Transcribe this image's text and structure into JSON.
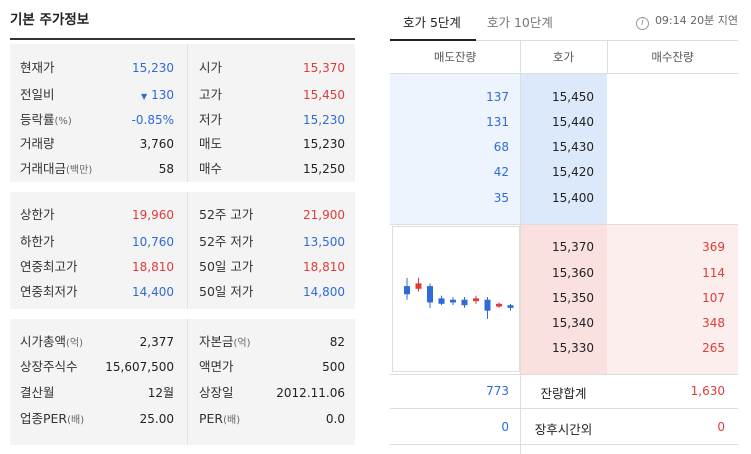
{
  "left": {
    "title": "기본 주가정보",
    "sections": [
      {
        "rows": [
          {
            "k1": "현재가",
            "k1_sub": "",
            "v1": "15,230",
            "v1_color": "blue",
            "v1_arrow": "",
            "k2": "시가",
            "k2_sub": "",
            "v2": "15,370",
            "v2_color": "red"
          },
          {
            "k1": "전일비",
            "k1_sub": "",
            "v1": "130",
            "v1_color": "blue",
            "v1_arrow": "▼",
            "k2": "고가",
            "k2_sub": "",
            "v2": "15,450",
            "v2_color": "red"
          },
          {
            "k1": "등락률",
            "k1_sub": "(%)",
            "v1": "-0.85%",
            "v1_color": "blue",
            "v1_arrow": "",
            "k2": "저가",
            "k2_sub": "",
            "v2": "15,230",
            "v2_color": "blue"
          },
          {
            "k1": "거래량",
            "k1_sub": "",
            "v1": "3,760",
            "v1_color": "",
            "v1_arrow": "",
            "k2": "매도",
            "k2_sub": "",
            "v2": "15,230",
            "v2_color": ""
          },
          {
            "k1": "거래대금",
            "k1_sub": "(백만)",
            "v1": "58",
            "v1_color": "",
            "v1_arrow": "",
            "k2": "매수",
            "k2_sub": "",
            "v2": "15,250",
            "v2_color": ""
          }
        ]
      },
      {
        "rows": [
          {
            "k1": "상한가",
            "k1_sub": "",
            "v1": "19,960",
            "v1_color": "red",
            "v1_arrow": "",
            "k2": "52주 고가",
            "k2_sub": "",
            "v2": "21,900",
            "v2_color": "red"
          },
          {
            "k1": "하한가",
            "k1_sub": "",
            "v1": "10,760",
            "v1_color": "blue",
            "v1_arrow": "",
            "k2": "52주 저가",
            "k2_sub": "",
            "v2": "13,500",
            "v2_color": "blue"
          },
          {
            "k1": "연중최고가",
            "k1_sub": "",
            "v1": "18,810",
            "v1_color": "red",
            "v1_arrow": "",
            "k2": "50일 고가",
            "k2_sub": "",
            "v2": "18,810",
            "v2_color": "red"
          },
          {
            "k1": "연중최저가",
            "k1_sub": "",
            "v1": "14,400",
            "v1_color": "blue",
            "v1_arrow": "",
            "k2": "50일 저가",
            "k2_sub": "",
            "v2": "14,800",
            "v2_color": "blue"
          }
        ]
      },
      {
        "rows": [
          {
            "k1": "시가총액",
            "k1_sub": "(억)",
            "v1": "2,377",
            "v1_color": "",
            "v1_arrow": "",
            "k2": "자본금",
            "k2_sub": "(억)",
            "v2": "82",
            "v2_color": ""
          },
          {
            "k1": "상장주식수",
            "k1_sub": "",
            "v1": "15,607,500",
            "v1_color": "",
            "v1_arrow": "",
            "k2": "액면가",
            "k2_sub": "",
            "v2": "500",
            "v2_color": ""
          },
          {
            "k1": "결산월",
            "k1_sub": "",
            "v1": "12월",
            "v1_color": "",
            "v1_arrow": "",
            "k2": "상장일",
            "k2_sub": "",
            "v2": "2012.11.06",
            "v2_color": ""
          },
          {
            "k1": "업종PER",
            "k1_sub": "(배)",
            "v1": "25.00",
            "v1_color": "",
            "v1_arrow": "",
            "k2": "PER",
            "k2_sub": "(배)",
            "v2": "0.0",
            "v2_color": ""
          }
        ]
      }
    ]
  },
  "right": {
    "tabs": [
      {
        "label": "호가 5단계",
        "active": true
      },
      {
        "label": "호가 10단계",
        "active": false
      }
    ],
    "info_icon_glyph": "i",
    "status_text": "09:14 20분 지연",
    "columns": {
      "ask_volume": "매도잔량",
      "price": "호가",
      "bid_volume": "매수잔량"
    },
    "asks": [
      {
        "volume": "137",
        "price": "15,450"
      },
      {
        "volume": "131",
        "price": "15,440"
      },
      {
        "volume": "68",
        "price": "15,430"
      },
      {
        "volume": "42",
        "price": "15,420"
      },
      {
        "volume": "35",
        "price": "15,400"
      }
    ],
    "bids": [
      {
        "price": "15,370",
        "volume": "369"
      },
      {
        "price": "15,360",
        "volume": "114"
      },
      {
        "price": "15,350",
        "volume": "107"
      },
      {
        "price": "15,340",
        "volume": "348"
      },
      {
        "price": "15,330",
        "volume": "265"
      }
    ],
    "summary": {
      "ask_total": "773",
      "total_label": "잔량합계",
      "bid_total": "1,630",
      "after_ask": "0",
      "after_label": "장후시간외",
      "after_bid": "0"
    },
    "mini_chart": {
      "type": "candlestick",
      "candles": [
        {
          "o": 15350,
          "c": 15320,
          "h": 15380,
          "l": 15300
        },
        {
          "o": 15340,
          "c": 15360,
          "h": 15380,
          "l": 15330
        },
        {
          "o": 15350,
          "c": 15290,
          "h": 15360,
          "l": 15270
        },
        {
          "o": 15305,
          "c": 15285,
          "h": 15315,
          "l": 15280
        },
        {
          "o": 15300,
          "c": 15290,
          "h": 15310,
          "l": 15280
        },
        {
          "o": 15300,
          "c": 15280,
          "h": 15310,
          "l": 15270
        },
        {
          "o": 15295,
          "c": 15305,
          "h": 15315,
          "l": 15285
        },
        {
          "o": 15300,
          "c": 15260,
          "h": 15310,
          "l": 15230
        },
        {
          "o": 15275,
          "c": 15285,
          "h": 15290,
          "l": 15270
        },
        {
          "o": 15280,
          "c": 15270,
          "h": 15285,
          "l": 15260
        }
      ],
      "up_color": "#e03a3a",
      "down_color": "#2f6bd6"
    }
  }
}
